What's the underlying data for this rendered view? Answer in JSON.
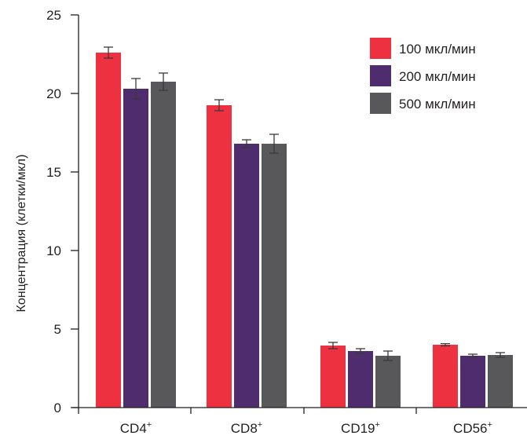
{
  "chart_data": {
    "type": "bar",
    "categories": [
      "CD4",
      "CD8",
      "CD19",
      "CD56"
    ],
    "category_superscript": "+",
    "ylabel": "Концентрация (клетки/мкл)",
    "xlabel": "",
    "ylim": [
      0,
      25
    ],
    "yticks": [
      0,
      5,
      10,
      15,
      20,
      25
    ],
    "grid": false,
    "legend_position": "top-right",
    "series": [
      {
        "name": "100 мкл/мин",
        "color": "#ee3140",
        "values": [
          22.6,
          19.25,
          3.95,
          4.0
        ],
        "errors": [
          0.35,
          0.35,
          0.2,
          0.07
        ]
      },
      {
        "name": "200 мкл/мин",
        "color": "#4f2c6d",
        "values": [
          20.3,
          16.8,
          3.6,
          3.3
        ],
        "errors": [
          0.65,
          0.25,
          0.15,
          0.1
        ]
      },
      {
        "name": "500 мкл/мин",
        "color": "#58585a",
        "values": [
          20.75,
          16.8,
          3.3,
          3.35
        ],
        "errors": [
          0.55,
          0.6,
          0.3,
          0.15
        ]
      }
    ]
  }
}
